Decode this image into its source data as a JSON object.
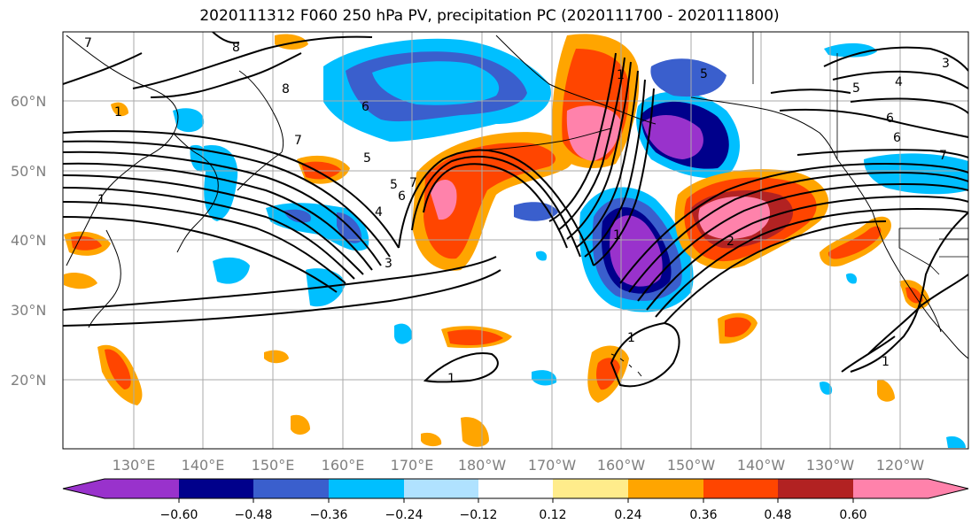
{
  "title": "2020111312 F060 250 hPa PV, precipitation PC (2020111700 - 2020111800)",
  "lat_labels": [
    "60°N",
    "50°N",
    "40°N",
    "30°N",
    "20°N"
  ],
  "lon_labels": [
    "130°E",
    "140°E",
    "150°E",
    "160°E",
    "170°E",
    "180°W",
    "170°W",
    "160°W",
    "150°W",
    "140°W",
    "130°W",
    "120°W"
  ],
  "colorbar": {
    "ticks": [
      "−0.60",
      "−0.48",
      "−0.36",
      "−0.24",
      "−0.12",
      "0.12",
      "0.24",
      "0.36",
      "0.48",
      "0.60"
    ],
    "colors": [
      "#9932cc",
      "#00008b",
      "#3a5fcd",
      "#00bfff",
      "#b0e2ff",
      "#ffffff",
      "#ffec8b",
      "#ffa500",
      "#ff4500",
      "#b22222",
      "#ff82ab"
    ]
  },
  "contour_labels": [
    "7",
    "8",
    "8",
    "7",
    "6",
    "1",
    "3",
    "4",
    "5",
    "6",
    "7",
    "1",
    "5",
    "4",
    "6",
    "7",
    "5",
    "6",
    "3",
    "1",
    "1",
    "1",
    "2",
    "1",
    "1",
    "5"
  ]
}
